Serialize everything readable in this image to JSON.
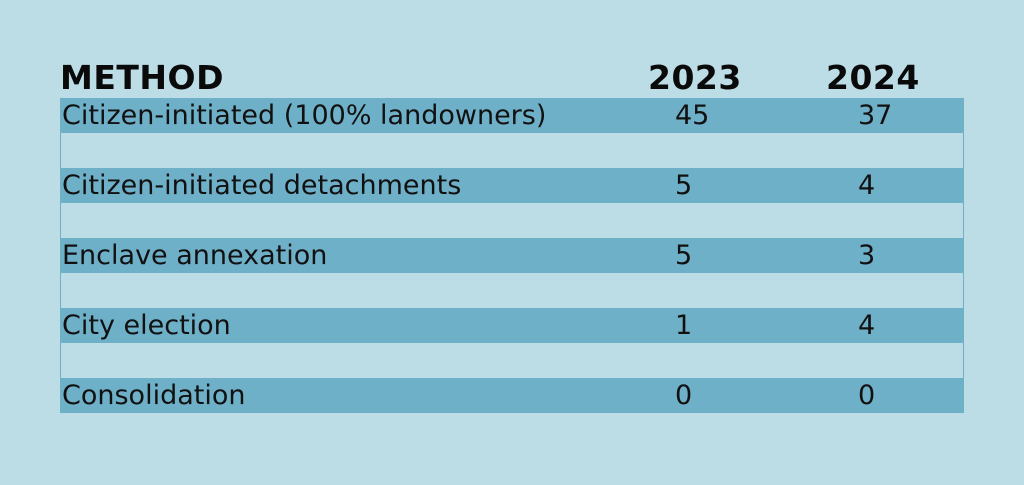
{
  "chart_data": {
    "type": "table",
    "columns": [
      "METHOD",
      "2023",
      "2024"
    ],
    "rows": [
      {
        "method": "Citizen-initiated (100% landowners)",
        "y2023": "45",
        "y2024": "37"
      },
      {
        "method": "Citizen-initiated detachments",
        "y2023": "5",
        "y2024": "4"
      },
      {
        "method": "Enclave annexation",
        "y2023": "5",
        "y2024": "3"
      },
      {
        "method": "City election",
        "y2023": "1",
        "y2024": "4"
      },
      {
        "method": "Consolidation",
        "y2023": "0",
        "y2024": "0"
      }
    ]
  },
  "colors": {
    "background": "#bcdce6",
    "row_fill": "#6fb0c9",
    "text": "#111111"
  }
}
